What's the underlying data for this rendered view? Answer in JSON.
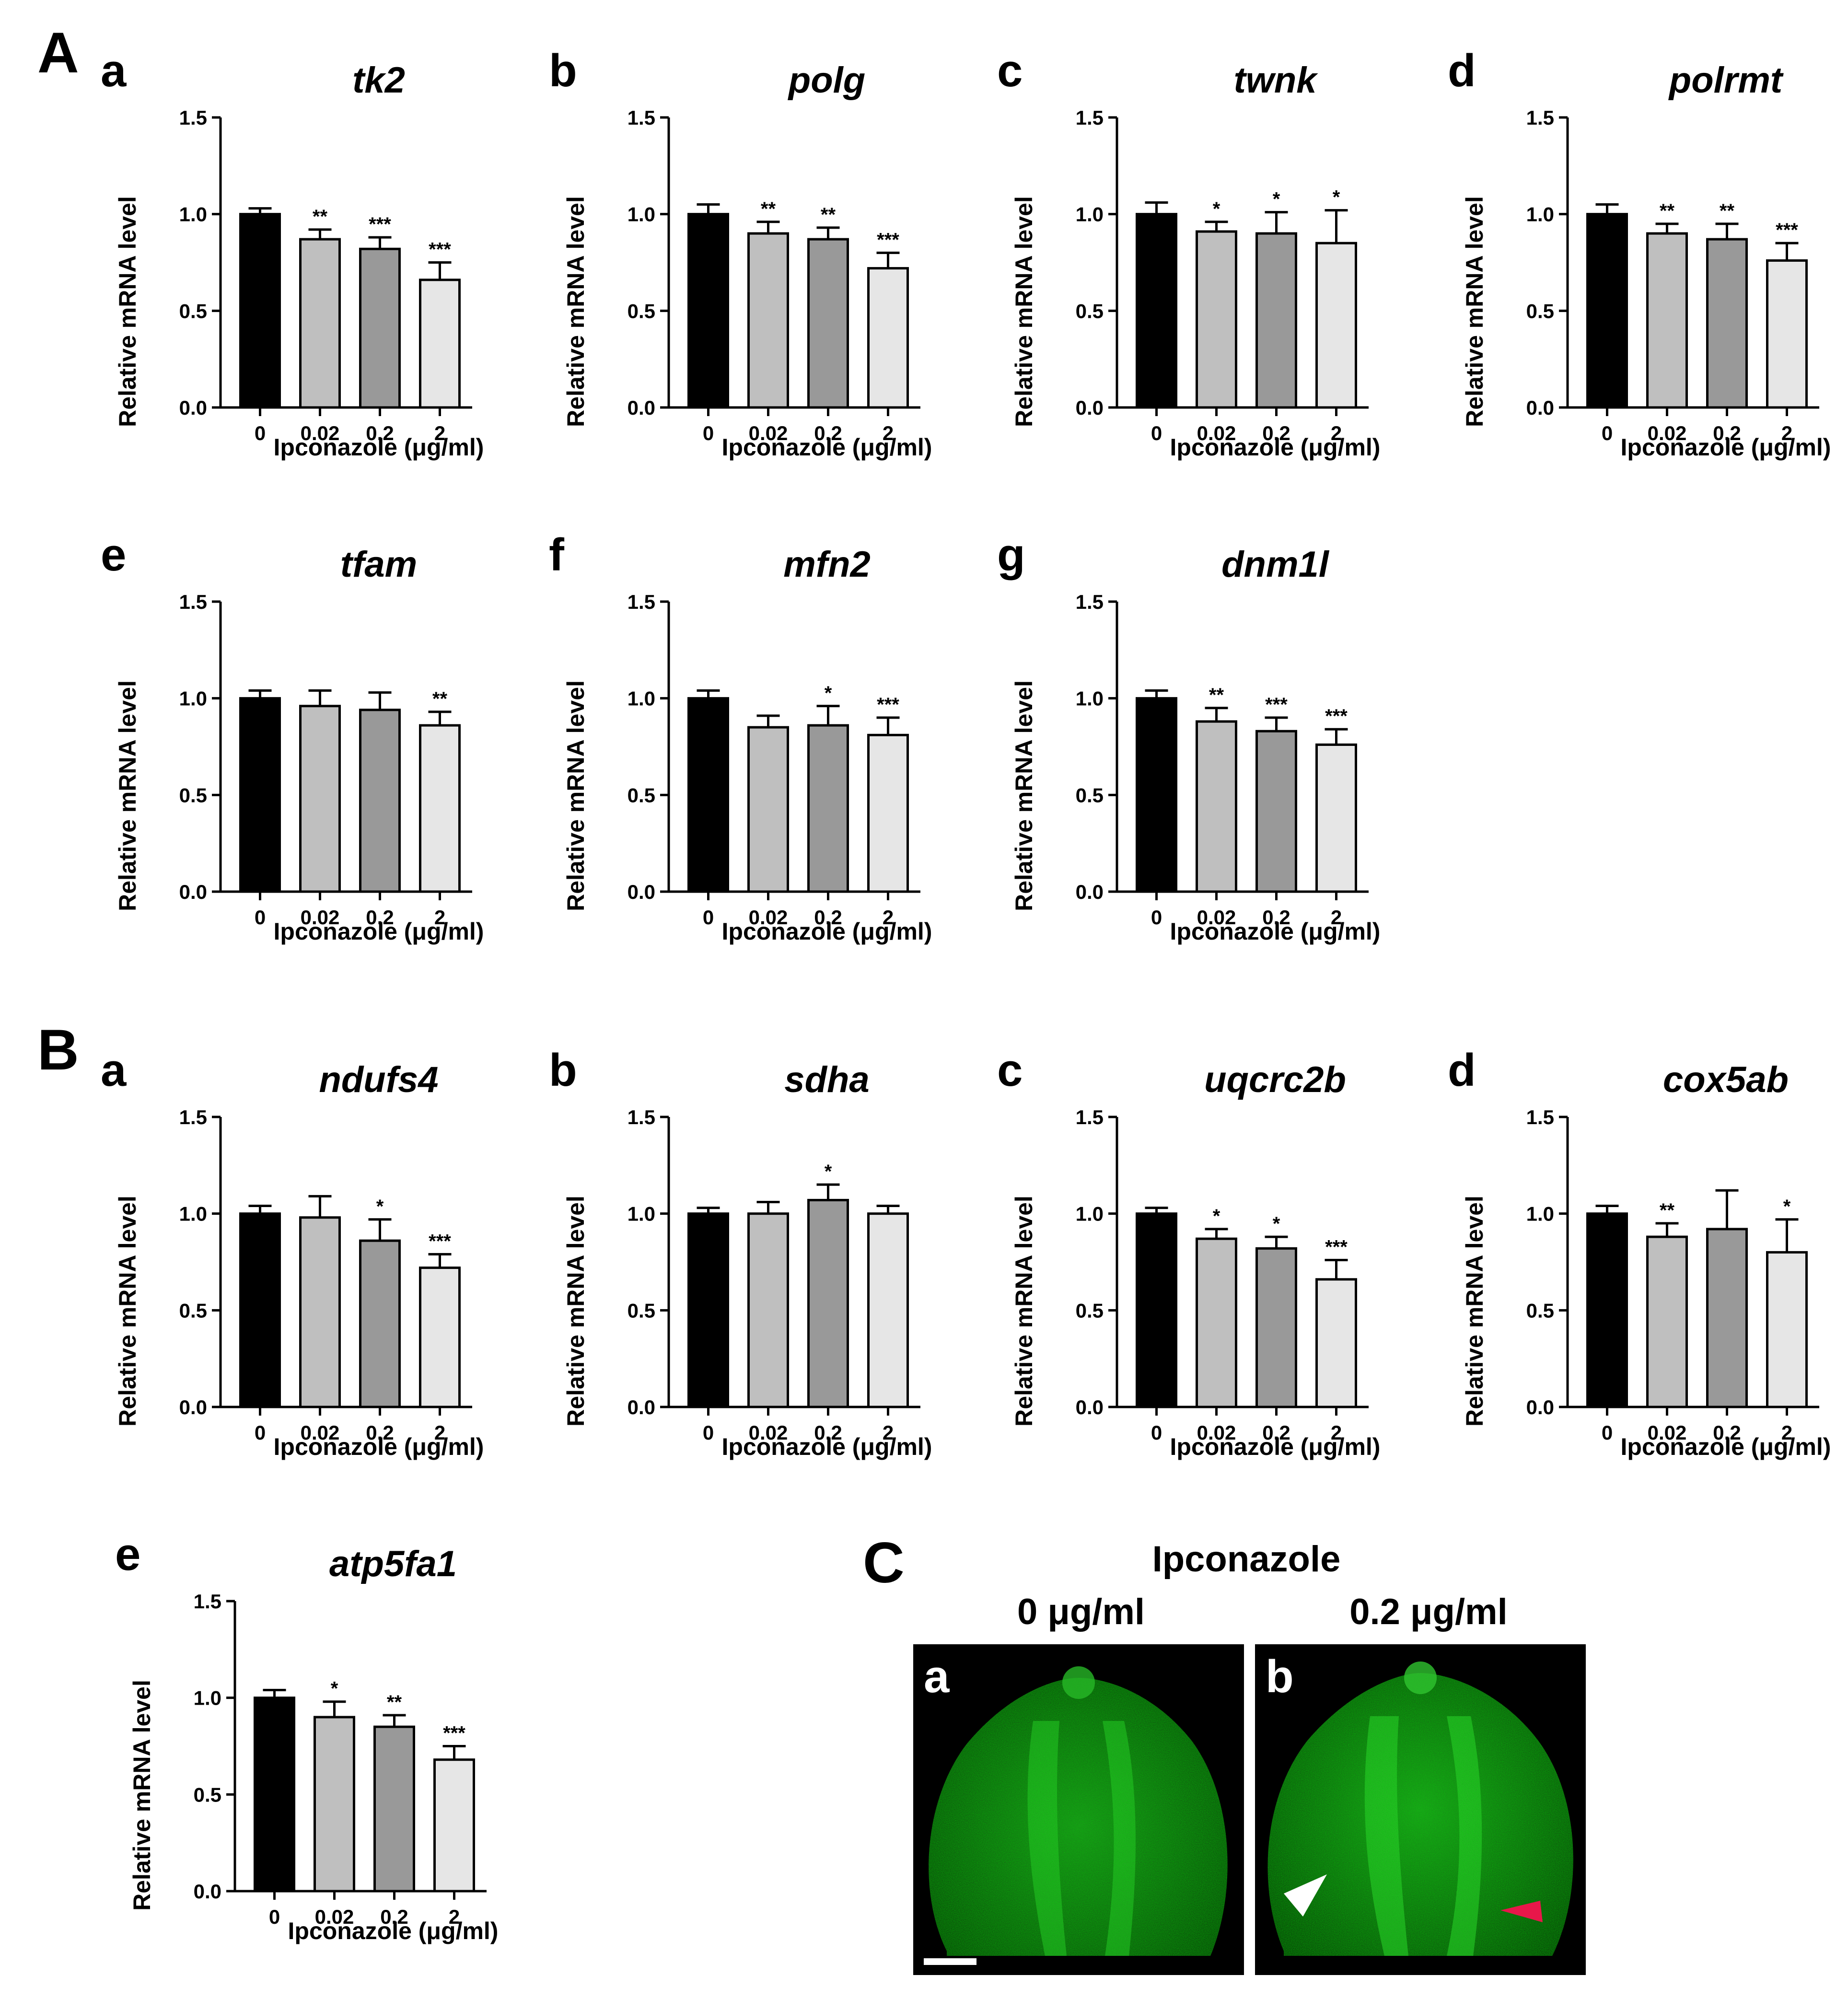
{
  "sections": [
    "A",
    "B",
    "C"
  ],
  "shared": {
    "xlabel": "Ipconazole (μg/ml)",
    "ylabel": "Relative mRNA level",
    "categories": [
      "0",
      "0.02",
      "0.2",
      "2"
    ],
    "yticks": [
      "0.0",
      "0.5",
      "1.0",
      "1.5"
    ],
    "bar_colors": [
      "#000000",
      "#bfbfbf",
      "#999999",
      "#e6e6e6"
    ]
  },
  "chart_data": [
    {
      "type": "bar",
      "panel": "a",
      "section": "A",
      "title": "tk2",
      "categories": [
        "0",
        "0.02",
        "0.2",
        "2"
      ],
      "values": [
        1.0,
        0.87,
        0.82,
        0.66
      ],
      "errors": [
        0.03,
        0.05,
        0.06,
        0.09
      ],
      "significance": [
        "",
        "**",
        "***",
        "***"
      ],
      "xlabel": "Ipconazole (μg/ml)",
      "ylabel": "Relative mRNA level",
      "ylim": [
        0,
        1.5
      ]
    },
    {
      "type": "bar",
      "panel": "b",
      "section": "A",
      "title": "polg",
      "categories": [
        "0",
        "0.02",
        "0.2",
        "2"
      ],
      "values": [
        1.0,
        0.9,
        0.87,
        0.72
      ],
      "errors": [
        0.05,
        0.06,
        0.06,
        0.08
      ],
      "significance": [
        "",
        "**",
        "**",
        "***"
      ],
      "xlabel": "Ipconazole (μg/ml)",
      "ylabel": "Relative mRNA level",
      "ylim": [
        0,
        1.5
      ]
    },
    {
      "type": "bar",
      "panel": "c",
      "section": "A",
      "title": "twnk",
      "categories": [
        "0",
        "0.02",
        "0.2",
        "2"
      ],
      "values": [
        1.0,
        0.91,
        0.9,
        0.85
      ],
      "errors": [
        0.06,
        0.05,
        0.11,
        0.17
      ],
      "significance": [
        "",
        "*",
        "*",
        "*"
      ],
      "xlabel": "Ipconazole (μg/ml)",
      "ylabel": "Relative mRNA level",
      "ylim": [
        0,
        1.5
      ]
    },
    {
      "type": "bar",
      "panel": "d",
      "section": "A",
      "title": "polrmt",
      "categories": [
        "0",
        "0.02",
        "0.2",
        "2"
      ],
      "values": [
        1.0,
        0.9,
        0.87,
        0.76
      ],
      "errors": [
        0.05,
        0.05,
        0.08,
        0.09
      ],
      "significance": [
        "",
        "**",
        "**",
        "***"
      ],
      "xlabel": "Ipconazole (μg/ml)",
      "ylabel": "Relative mRNA level",
      "ylim": [
        0,
        1.5
      ]
    },
    {
      "type": "bar",
      "panel": "e",
      "section": "A",
      "title": "tfam",
      "categories": [
        "0",
        "0.02",
        "0.2",
        "2"
      ],
      "values": [
        1.0,
        0.96,
        0.94,
        0.86
      ],
      "errors": [
        0.04,
        0.08,
        0.09,
        0.07
      ],
      "significance": [
        "",
        "",
        "",
        "**"
      ],
      "xlabel": "Ipconazole (μg/ml)",
      "ylabel": "Relative mRNA level",
      "ylim": [
        0,
        1.5
      ]
    },
    {
      "type": "bar",
      "panel": "f",
      "section": "A",
      "title": "mfn2",
      "categories": [
        "0",
        "0.02",
        "0.2",
        "2"
      ],
      "values": [
        1.0,
        0.85,
        0.86,
        0.81
      ],
      "errors": [
        0.04,
        0.06,
        0.1,
        0.09
      ],
      "significance": [
        "",
        "",
        "*",
        "***"
      ],
      "xlabel": "Ipconazole (μg/ml)",
      "ylabel": "Relative mRNA level",
      "ylim": [
        0,
        1.5
      ]
    },
    {
      "type": "bar",
      "panel": "g",
      "section": "A",
      "title": "dnm1l",
      "categories": [
        "0",
        "0.02",
        "0.2",
        "2"
      ],
      "values": [
        1.0,
        0.88,
        0.83,
        0.76
      ],
      "errors": [
        0.04,
        0.07,
        0.07,
        0.08
      ],
      "significance": [
        "",
        "**",
        "***",
        "***"
      ],
      "xlabel": "Ipconazole (μg/ml)",
      "ylabel": "Relative mRNA level",
      "ylim": [
        0,
        1.5
      ]
    },
    {
      "type": "bar",
      "panel": "a",
      "section": "B",
      "title": "ndufs4",
      "categories": [
        "0",
        "0.02",
        "0.2",
        "2"
      ],
      "values": [
        1.0,
        0.98,
        0.86,
        0.72
      ],
      "errors": [
        0.04,
        0.11,
        0.11,
        0.07
      ],
      "significance": [
        "",
        "",
        "*",
        "***"
      ],
      "xlabel": "Ipconazole (μg/ml)",
      "ylabel": "Relative mRNA level",
      "ylim": [
        0,
        1.5
      ]
    },
    {
      "type": "bar",
      "panel": "b",
      "section": "B",
      "title": "sdha",
      "categories": [
        "0",
        "0.02",
        "0.2",
        "2"
      ],
      "values": [
        1.0,
        1.0,
        1.07,
        1.0
      ],
      "errors": [
        0.03,
        0.06,
        0.08,
        0.04
      ],
      "significance": [
        "",
        "",
        "*",
        ""
      ],
      "xlabel": "Ipconazole (μg/ml)",
      "ylabel": "Relative mRNA level",
      "ylim": [
        0,
        1.5
      ]
    },
    {
      "type": "bar",
      "panel": "c",
      "section": "B",
      "title": "uqcrc2b",
      "categories": [
        "0",
        "0.02",
        "0.2",
        "2"
      ],
      "values": [
        1.0,
        0.87,
        0.82,
        0.66
      ],
      "errors": [
        0.03,
        0.05,
        0.06,
        0.1
      ],
      "significance": [
        "",
        "*",
        "*",
        "***"
      ],
      "xlabel": "Ipconazole (μg/ml)",
      "ylabel": "Relative mRNA level",
      "ylim": [
        0,
        1.5
      ]
    },
    {
      "type": "bar",
      "panel": "d",
      "section": "B",
      "title": "cox5ab",
      "categories": [
        "0",
        "0.02",
        "0.2",
        "2"
      ],
      "values": [
        1.0,
        0.88,
        0.92,
        0.8
      ],
      "errors": [
        0.04,
        0.07,
        0.2,
        0.17
      ],
      "significance": [
        "",
        "**",
        "",
        "*"
      ],
      "xlabel": "Ipconazole (μg/ml)",
      "ylabel": "Relative mRNA level",
      "ylim": [
        0,
        1.5
      ]
    },
    {
      "type": "bar",
      "panel": "e",
      "section": "B",
      "title": "atp5fa1",
      "categories": [
        "0",
        "0.02",
        "0.2",
        "2"
      ],
      "values": [
        1.0,
        0.9,
        0.85,
        0.68
      ],
      "errors": [
        0.04,
        0.08,
        0.06,
        0.07
      ],
      "significance": [
        "",
        "*",
        "**",
        "***"
      ],
      "xlabel": "Ipconazole (μg/ml)",
      "ylabel": "Relative mRNA level",
      "ylim": [
        0,
        1.5
      ]
    }
  ],
  "panel_c": {
    "title": "Ipconazole",
    "images": [
      {
        "letter": "a",
        "label": "0 μg/ml"
      },
      {
        "letter": "b",
        "label": "0.2 μg/ml"
      }
    ],
    "arrow_colors": {
      "white": "#ffffff",
      "red": "#e8174a"
    },
    "fluorescence_color": "#2bd62b"
  }
}
